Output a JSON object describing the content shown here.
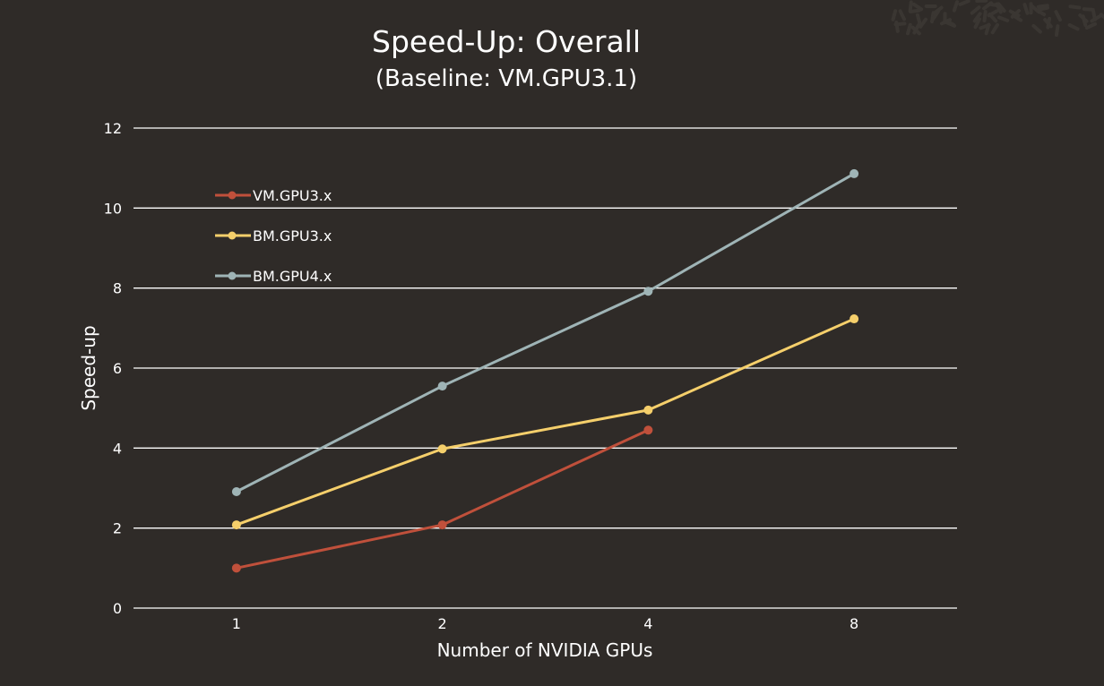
{
  "chart_data": {
    "type": "line",
    "title": "Speed-Up: Overall",
    "subtitle": "(Baseline: VM.GPU3.1)",
    "xlabel": "Number of NVIDIA GPUs",
    "ylabel": "Speed-up",
    "categories": [
      "1",
      "2",
      "4",
      "8"
    ],
    "ylim": [
      0,
      12
    ],
    "yticks": [
      "0",
      "2",
      "4",
      "6",
      "8",
      "10",
      "12"
    ],
    "grid": true,
    "legend_position": "top-left",
    "series": [
      {
        "name": "VM.GPU3.x",
        "color": "#c0503b",
        "values": [
          1.0,
          2.08,
          4.45,
          null
        ]
      },
      {
        "name": "BM.GPU3.x",
        "color": "#f5cf6b",
        "values": [
          2.08,
          3.98,
          4.95,
          7.23
        ]
      },
      {
        "name": "BM.GPU4.x",
        "color": "#9fb4b6",
        "values": [
          2.91,
          5.55,
          7.92,
          10.86
        ]
      }
    ]
  },
  "colors": {
    "background": "#2f2b28",
    "text": "#ffffff",
    "grid": "#ffffff"
  }
}
